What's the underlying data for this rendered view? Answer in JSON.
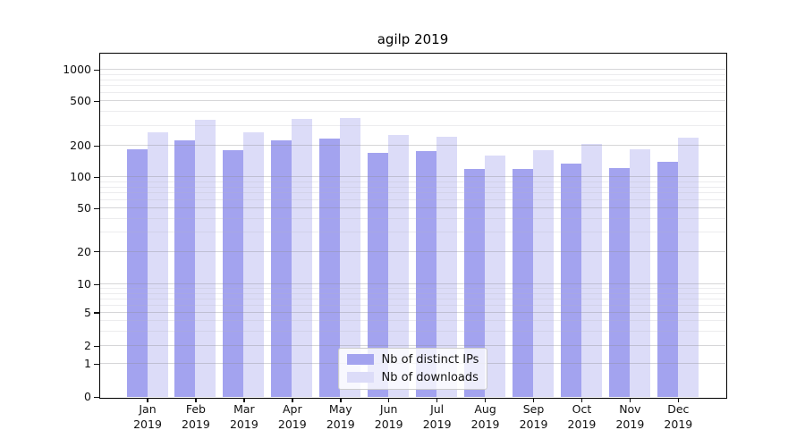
{
  "title": "agilp 2019",
  "legend": {
    "items": [
      {
        "label": "Nb of distinct IPs",
        "color": "#a3a3ef"
      },
      {
        "label": "Nb of downloads",
        "color": "#dcdcf8"
      }
    ]
  },
  "y_axis": {
    "tick_labels": [
      "1000",
      "500",
      "200",
      "100",
      "50",
      "20",
      "10",
      "5",
      "2",
      "1",
      "0"
    ],
    "tick_values": [
      1000,
      500,
      200,
      100,
      50,
      20,
      10,
      5,
      2,
      1,
      0
    ]
  },
  "x_axis": {
    "months": [
      "Jan",
      "Feb",
      "Mar",
      "Apr",
      "May",
      "Jun",
      "Jul",
      "Aug",
      "Sep",
      "Oct",
      "Nov",
      "Dec"
    ],
    "year": "2019"
  },
  "chart_data": {
    "type": "bar",
    "title": "agilp 2019",
    "categories": [
      "Jan 2019",
      "Feb 2019",
      "Mar 2019",
      "Apr 2019",
      "May 2019",
      "Jun 2019",
      "Jul 2019",
      "Aug 2019",
      "Sep 2019",
      "Oct 2019",
      "Nov 2019",
      "Dec 2019"
    ],
    "series": [
      {
        "name": "Nb of distinct IPs",
        "color": "#a3a3ef",
        "values": [
          184,
          222,
          182,
          223,
          230,
          170,
          178,
          118,
          119,
          133,
          122,
          139
        ]
      },
      {
        "name": "Nb of downloads",
        "color": "#dcdcf8",
        "values": [
          262,
          342,
          260,
          346,
          352,
          249,
          241,
          160,
          179,
          206,
          185,
          236
        ]
      }
    ],
    "xlabel": "",
    "ylabel": "",
    "yscale": "symlog-like",
    "ylim": [
      0,
      1400
    ],
    "yticks": [
      0,
      1,
      2,
      5,
      10,
      20,
      50,
      100,
      200,
      500,
      1000
    ],
    "y_minor_gridlines": [
      3,
      4,
      6,
      7,
      8,
      9,
      30,
      40,
      60,
      70,
      80,
      90,
      300,
      400,
      600,
      700,
      800,
      900
    ],
    "grid": true,
    "legend_position": "lower center"
  }
}
